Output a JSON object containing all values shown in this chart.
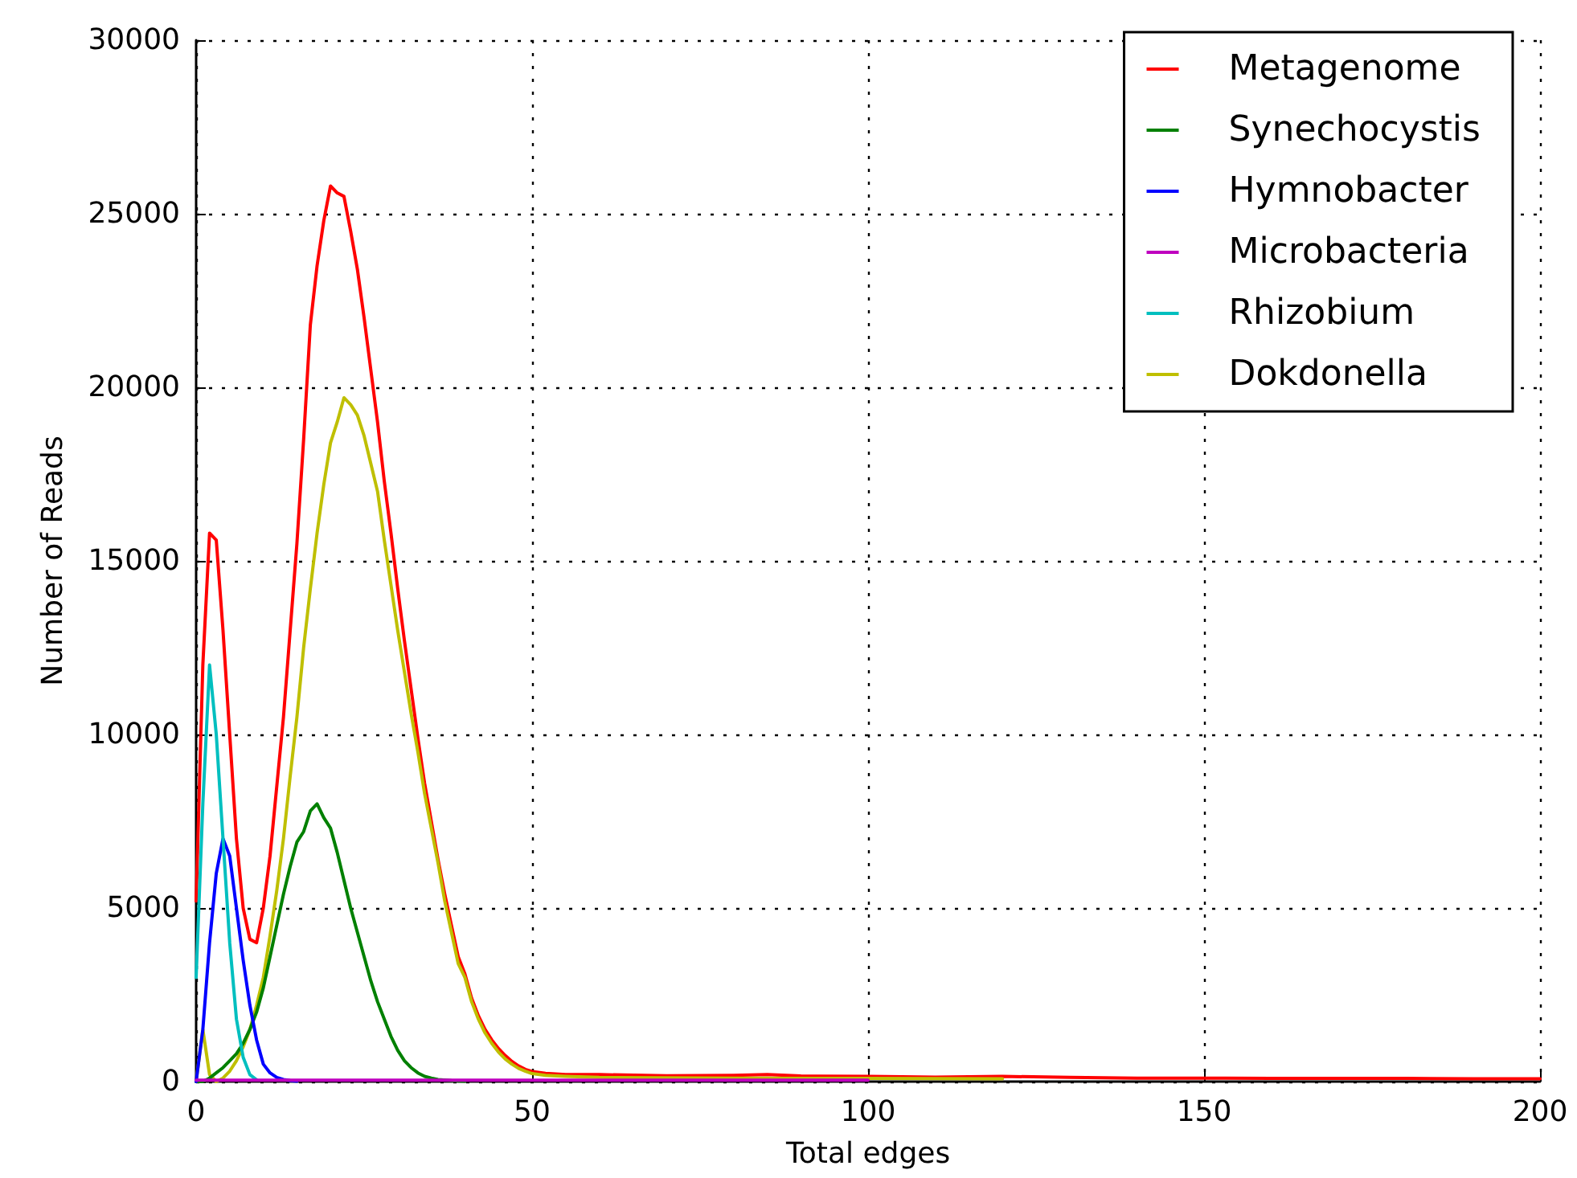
{
  "chart_data": {
    "type": "line",
    "xlabel": "Total edges",
    "ylabel": "Number of Reads",
    "xlim": [
      0,
      200
    ],
    "xticks": [
      0,
      50,
      100,
      150,
      200
    ],
    "ylim": [
      0,
      30000
    ],
    "yticks": [
      0,
      5000,
      10000,
      15000,
      20000,
      25000,
      30000
    ],
    "grid": true,
    "legend": "top right",
    "marker": "none",
    "line_style": "solid",
    "series": [
      {
        "name": "Metagenome",
        "color": "#ff0000",
        "x": [
          0,
          1,
          2,
          3,
          4,
          5,
          6,
          7,
          8,
          9,
          10,
          11,
          12,
          13,
          14,
          15,
          16,
          17,
          18,
          19,
          20,
          21,
          22,
          23,
          24,
          25,
          26,
          27,
          28,
          29,
          30,
          31,
          32,
          33,
          34,
          35,
          36,
          37,
          38,
          39,
          40,
          41,
          42,
          43,
          44,
          45,
          46,
          47,
          48,
          49,
          50,
          52,
          55,
          60,
          70,
          80,
          85,
          90,
          100,
          110,
          120,
          130,
          140,
          150,
          160,
          170,
          180,
          190,
          200
        ],
        "values": [
          5200,
          12000,
          15800,
          15600,
          13000,
          10000,
          7000,
          5000,
          4100,
          4000,
          5000,
          6500,
          8500,
          10500,
          13000,
          15500,
          18500,
          21800,
          23500,
          24800,
          25800,
          25600,
          25500,
          24500,
          23400,
          22000,
          20500,
          19000,
          17300,
          15800,
          14200,
          12700,
          11300,
          9900,
          8600,
          7500,
          6400,
          5400,
          4500,
          3600,
          3100,
          2400,
          1900,
          1500,
          1200,
          950,
          750,
          580,
          450,
          350,
          290,
          240,
          200,
          200,
          170,
          180,
          200,
          160,
          150,
          130,
          150,
          120,
          100,
          100,
          90,
          90,
          90,
          80,
          80
        ]
      },
      {
        "name": "Synechocystis",
        "color": "#008000",
        "x": [
          0,
          1,
          2,
          3,
          4,
          5,
          6,
          7,
          8,
          9,
          10,
          11,
          12,
          13,
          14,
          15,
          16,
          17,
          18,
          19,
          20,
          21,
          22,
          23,
          24,
          25,
          26,
          27,
          28,
          29,
          30,
          31,
          32,
          33,
          34,
          35,
          36,
          38,
          40
        ],
        "values": [
          0,
          0,
          100,
          250,
          400,
          600,
          800,
          1100,
          1500,
          2000,
          2700,
          3600,
          4500,
          5400,
          6200,
          6900,
          7200,
          7800,
          8000,
          7600,
          7300,
          6600,
          5800,
          5000,
          4300,
          3600,
          2900,
          2300,
          1800,
          1300,
          900,
          600,
          400,
          250,
          150,
          100,
          60,
          30,
          10
        ]
      },
      {
        "name": "Hymnobacter",
        "color": "#0000ff",
        "x": [
          0,
          1,
          2,
          3,
          4,
          5,
          6,
          7,
          8,
          9,
          10,
          11,
          12,
          13,
          14,
          15
        ],
        "values": [
          0,
          1500,
          4000,
          6000,
          7000,
          6500,
          5000,
          3500,
          2200,
          1200,
          500,
          250,
          120,
          60,
          30,
          10
        ]
      },
      {
        "name": "Microbacteria",
        "color": "#bf00bf",
        "x": [
          0,
          10,
          50,
          100
        ],
        "values": [
          40,
          40,
          40,
          40
        ]
      },
      {
        "name": "Rhizobium",
        "color": "#00bfbf",
        "x": [
          0,
          1,
          2,
          3,
          4,
          5,
          6,
          7,
          8,
          9
        ],
        "values": [
          3000,
          8000,
          12000,
          10000,
          7000,
          4000,
          1800,
          700,
          200,
          50
        ]
      },
      {
        "name": "Dokdonella",
        "color": "#bfbf00",
        "x": [
          0,
          1,
          2,
          3,
          4,
          5,
          6,
          7,
          8,
          9,
          10,
          11,
          12,
          13,
          14,
          15,
          16,
          17,
          18,
          19,
          20,
          21,
          22,
          23,
          24,
          25,
          26,
          27,
          28,
          29,
          30,
          31,
          32,
          33,
          34,
          35,
          36,
          37,
          38,
          39,
          40,
          41,
          42,
          43,
          44,
          45,
          46,
          47,
          48,
          49,
          50,
          52,
          55,
          60,
          80,
          100,
          120
        ],
        "values": [
          0,
          1500,
          200,
          0,
          100,
          300,
          600,
          1000,
          1500,
          2200,
          3000,
          4200,
          5500,
          7000,
          8800,
          10500,
          12500,
          14200,
          15800,
          17200,
          18400,
          19000,
          19700,
          19500,
          19200,
          18600,
          17800,
          17000,
          15600,
          14300,
          13000,
          11800,
          10600,
          9500,
          8300,
          7300,
          6300,
          5200,
          4300,
          3400,
          3000,
          2300,
          1800,
          1400,
          1100,
          850,
          650,
          500,
          380,
          300,
          230,
          180,
          150,
          120,
          100,
          90,
          80
        ]
      }
    ]
  }
}
